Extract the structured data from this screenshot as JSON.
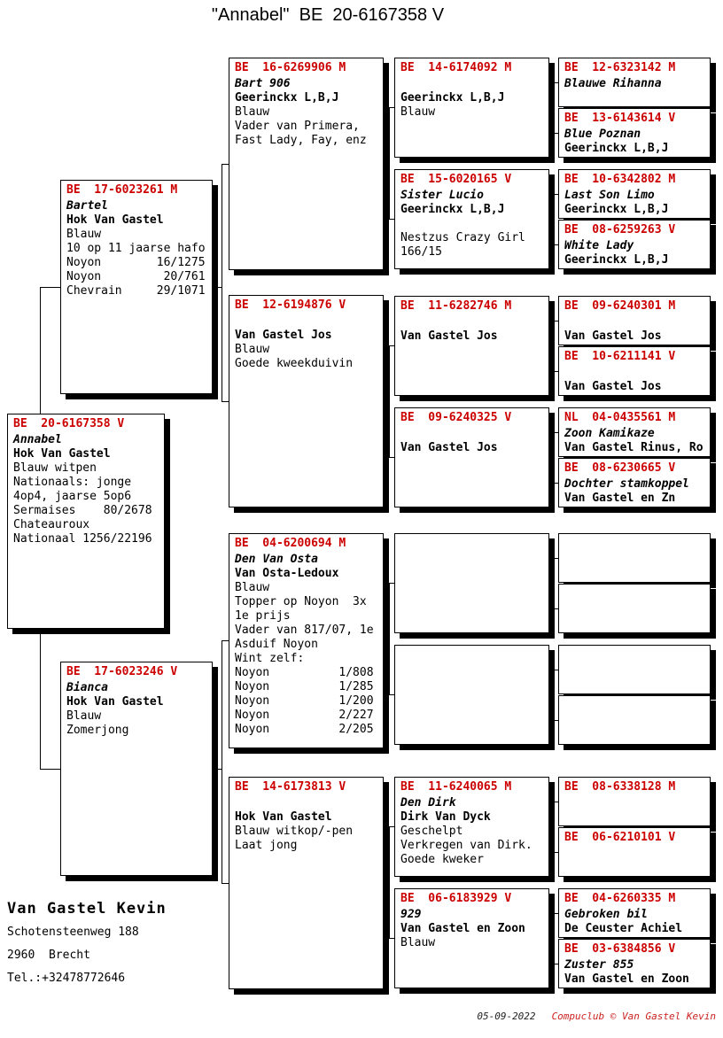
{
  "title": "\"Annabel\"  BE  20-6167358 V",
  "colors": {
    "ring_red": "#cc0000",
    "text": "#000000",
    "shadow": "#000000",
    "credit_red": "#cc2222"
  },
  "owner": {
    "name": "Van Gastel Kevin",
    "address1": "Schotensteenweg 188",
    "address2": "2960  Brecht",
    "phone": "Tel.:+32478772646"
  },
  "footer": {
    "date": "05-09-2022",
    "credit": "Compuclub © Van Gastel Kevin"
  },
  "boxes": {
    "subject": {
      "ring": "BE  20-6167358 V",
      "name": "Annabel",
      "breeder": "Hok Van Gastel",
      "lines": [
        "Blauw witpen",
        "Nationaals: jonge",
        "4op4, jaarse 5op6",
        "Sermaises    80/2678",
        "Chateauroux",
        "Nationaal 1256/22196"
      ]
    },
    "sire": {
      "ring": "BE  17-6023261 M",
      "name": "Bartel",
      "breeder": "Hok Van Gastel",
      "lines": [
        "Blauw",
        "10 op 11 jaarse hafo",
        "Noyon        16/1275",
        "Noyon         20/761",
        "Chevrain     29/1071"
      ]
    },
    "dam": {
      "ring": "BE  17-6023246 V",
      "name": "Bianca",
      "breeder": "Hok Van Gastel",
      "lines": [
        "Blauw",
        "Zomerjong"
      ]
    },
    "g2a": {
      "ring": "BE  16-6269906 M",
      "name": "Bart 906",
      "breeder": "Geerinckx L,B,J",
      "lines": [
        "Blauw",
        "Vader van Primera,",
        "Fast Lady, Fay, enz"
      ]
    },
    "g2b": {
      "ring": "BE  12-6194876 V",
      "name": "",
      "breeder": "Van Gastel Jos",
      "lines": [
        "Blauw",
        "Goede kweekduivin"
      ]
    },
    "g2c": {
      "ring": "BE  04-6200694 M",
      "name": "Den Van Osta",
      "breeder": "Van Osta-Ledoux",
      "lines": [
        "Blauw",
        "Topper op Noyon  3x",
        "1e prijs",
        "Vader van 817/07, 1e",
        "Asduif Noyon",
        "Wint zelf:",
        "Noyon          1/808",
        "Noyon          1/285",
        "Noyon          1/200",
        "Noyon          2/227",
        "Noyon          2/205"
      ]
    },
    "g2d": {
      "ring": "BE  14-6173813 V",
      "name": "",
      "breeder": "Hok Van Gastel",
      "lines": [
        "Blauw witkop/-pen",
        "Laat jong"
      ]
    },
    "g3r1": {
      "ring": "BE  14-6174092 M",
      "name": "",
      "breeder": "Geerinckx L,B,J",
      "lines": [
        "Blauw"
      ]
    },
    "g3r2": {
      "ring": "BE  15-6020165 V",
      "name": "Sister Lucio",
      "breeder": "Geerinckx L,B,J",
      "lines": [
        "",
        "Nestzus Crazy Girl",
        "166/15"
      ]
    },
    "g3r3": {
      "ring": "BE  11-6282746 M",
      "name": "",
      "breeder": "Van Gastel Jos",
      "lines": []
    },
    "g3r4": {
      "ring": "BE  09-6240325 V",
      "name": "",
      "breeder": "Van Gastel Jos",
      "lines": []
    },
    "g3r7": {
      "ring": "BE  11-6240065 M",
      "name": "Den Dirk",
      "breeder": "Dirk Van Dyck",
      "lines": [
        "Geschelpt",
        "Verkregen van Dirk.",
        "Goede kweker"
      ]
    },
    "g3r8": {
      "ring": "BE  06-6183929 V",
      "name": "929",
      "breeder": "Van Gastel en Zoon",
      "lines": [
        "Blauw"
      ]
    },
    "g4r1t": {
      "ring": "BE  12-6323142 M",
      "name": "Blauwe Rihanna",
      "breeder": "",
      "lines": []
    },
    "g4r1b": {
      "ring": "BE  13-6143614 V",
      "name": "Blue Poznan",
      "breeder": "Geerinckx L,B,J",
      "lines": []
    },
    "g4r2t": {
      "ring": "BE  10-6342802 M",
      "name": "Last Son Limo",
      "breeder": "Geerinckx L,B,J",
      "lines": []
    },
    "g4r2b": {
      "ring": "BE  08-6259263 V",
      "name": "White Lady",
      "breeder": "Geerinckx L,B,J",
      "lines": []
    },
    "g4r3t": {
      "ring": "BE  09-6240301 M",
      "name": "",
      "breeder": "Van Gastel Jos",
      "lines": []
    },
    "g4r3b": {
      "ring": "BE  10-6211141 V",
      "name": "",
      "breeder": "Van Gastel Jos",
      "lines": []
    },
    "g4r4t": {
      "ring": "NL  04-0435561 M",
      "name": "Zoon Kamikaze",
      "breeder": "Van Gastel Rinus, Ro",
      "lines": []
    },
    "g4r4b": {
      "ring": "BE  08-6230665 V",
      "name": "Dochter stamkoppel",
      "breeder": "Van Gastel en Zn",
      "lines": []
    },
    "g4r7t": {
      "ring": "BE  08-6338128 M",
      "name": "",
      "breeder": "",
      "lines": []
    },
    "g4r7b": {
      "ring": "BE  06-6210101 V",
      "name": "",
      "breeder": "",
      "lines": []
    },
    "g4r8t": {
      "ring": "BE  04-6260335 M",
      "name": "Gebroken bil",
      "breeder": "De Ceuster Achiel",
      "lines": []
    },
    "g4r8b": {
      "ring": "BE  03-6384856 V",
      "name": "Zuster 855",
      "breeder": "Van Gastel en Zoon",
      "lines": []
    }
  }
}
